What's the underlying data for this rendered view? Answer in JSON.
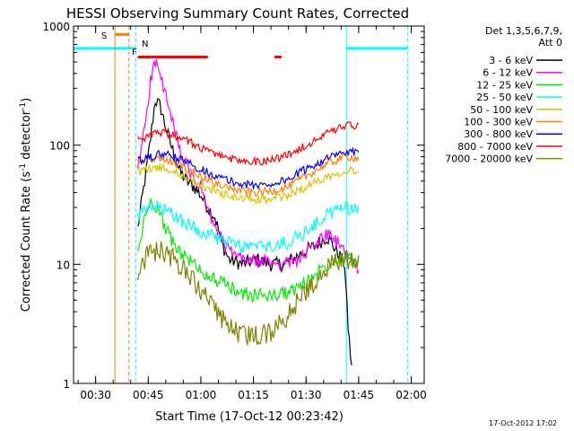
{
  "chart_data": {
    "type": "line",
    "title": "HESSI Observing Summary Count Rates, Corrected",
    "xlabel": "Start Time (17-Oct-12 00:23:42)",
    "ylabel_main": "Corrected Count Rate (s",
    "ylabel_exp1": "-1",
    "ylabel_mid": " detector",
    "ylabel_exp2": "-1",
    "ylabel_end": ")",
    "ylabel": "Corrected Count Rate (s-1 detector-1)",
    "y_scale": "log",
    "ylim": [
      1,
      1000
    ],
    "xlim": [
      "00:23:42",
      "02:03:42"
    ],
    "x_ticks": [
      "00:30",
      "00:45",
      "01:00",
      "01:15",
      "01:30",
      "01:45",
      "02:00"
    ],
    "y_ticks": [
      "1",
      "10",
      "100",
      "1000"
    ],
    "legend_title_1": "Det 1,3,5,6,7,9,",
    "legend_title_2": "Att 0",
    "legend_position": "right",
    "footer_date": "17-Oct-2012 17:02",
    "series": [
      {
        "name": "3 - 6 keV",
        "color": "#000000",
        "points": [
          [
            "00:42:00",
            20
          ],
          [
            "00:45:00",
            80
          ],
          [
            "00:47:00",
            240
          ],
          [
            "00:48:30",
            210
          ],
          [
            "00:50:00",
            140
          ],
          [
            "00:52:00",
            90
          ],
          [
            "00:54:00",
            60
          ],
          [
            "00:56:00",
            50
          ],
          [
            "00:58:00",
            45
          ],
          [
            "01:00:00",
            38
          ],
          [
            "01:02:00",
            30
          ],
          [
            "01:04:00",
            25
          ],
          [
            "01:06:00",
            15
          ],
          [
            "01:08:00",
            11
          ],
          [
            "01:12:00",
            10
          ],
          [
            "01:16:00",
            11
          ],
          [
            "01:20:00",
            10
          ],
          [
            "01:24:00",
            10
          ],
          [
            "01:28:00",
            12
          ],
          [
            "01:32:00",
            14
          ],
          [
            "01:36:00",
            17
          ],
          [
            "01:38:00",
            14
          ],
          [
            "01:41:00",
            10
          ],
          [
            "01:42:00",
            3
          ],
          [
            "01:43:00",
            1.3
          ]
        ]
      },
      {
        "name": "6 - 12 keV",
        "color": "#ff00ff",
        "points": [
          [
            "00:42:00",
            60
          ],
          [
            "00:44:00",
            150
          ],
          [
            "00:46:00",
            400
          ],
          [
            "00:47:00",
            500
          ],
          [
            "00:48:00",
            420
          ],
          [
            "00:50:00",
            260
          ],
          [
            "00:52:00",
            150
          ],
          [
            "00:54:00",
            90
          ],
          [
            "00:56:00",
            65
          ],
          [
            "00:58:00",
            50
          ],
          [
            "01:00:00",
            45
          ],
          [
            "01:02:00",
            28
          ],
          [
            "01:04:00",
            20
          ],
          [
            "01:06:00",
            16
          ],
          [
            "01:08:00",
            13
          ],
          [
            "01:12:00",
            11
          ],
          [
            "01:16:00",
            10.5
          ],
          [
            "01:20:00",
            10.5
          ],
          [
            "01:24:00",
            10
          ],
          [
            "01:28:00",
            11
          ],
          [
            "01:32:00",
            14
          ],
          [
            "01:36:00",
            18
          ],
          [
            "01:40:00",
            14
          ],
          [
            "01:42:00",
            12
          ],
          [
            "01:44:00",
            10
          ],
          [
            "01:45:00",
            9
          ]
        ]
      },
      {
        "name": "12 - 25 keV",
        "color": "#00ee00",
        "points": [
          [
            "00:42:00",
            12
          ],
          [
            "00:44:00",
            25
          ],
          [
            "00:46:00",
            35
          ],
          [
            "00:48:00",
            28
          ],
          [
            "00:50:00",
            20
          ],
          [
            "00:52:00",
            15
          ],
          [
            "00:55:00",
            12
          ],
          [
            "00:58:00",
            10
          ],
          [
            "01:02:00",
            8
          ],
          [
            "01:06:00",
            7
          ],
          [
            "01:10:00",
            6
          ],
          [
            "01:14:00",
            5.5
          ],
          [
            "01:18:00",
            5.5
          ],
          [
            "01:22:00",
            5.5
          ],
          [
            "01:26:00",
            6
          ],
          [
            "01:30:00",
            7
          ],
          [
            "01:34:00",
            9
          ],
          [
            "01:38:00",
            11
          ],
          [
            "01:41:00",
            12
          ],
          [
            "01:43:00",
            11
          ],
          [
            "01:45:00",
            10.5
          ]
        ]
      },
      {
        "name": "25 - 50 keV",
        "color": "#00ffff",
        "points": [
          [
            "00:42:00",
            25
          ],
          [
            "00:44:00",
            28
          ],
          [
            "00:46:00",
            30
          ],
          [
            "00:48:00",
            30
          ],
          [
            "00:50:00",
            28
          ],
          [
            "00:53:00",
            25
          ],
          [
            "00:56:00",
            22
          ],
          [
            "01:00:00",
            19
          ],
          [
            "01:04:00",
            17
          ],
          [
            "01:08:00",
            15
          ],
          [
            "01:12:00",
            14
          ],
          [
            "01:16:00",
            14
          ],
          [
            "01:20:00",
            14
          ],
          [
            "01:24:00",
            15
          ],
          [
            "01:28:00",
            17
          ],
          [
            "01:32:00",
            21
          ],
          [
            "01:36:00",
            26
          ],
          [
            "01:40:00",
            30
          ],
          [
            "01:43:00",
            30
          ],
          [
            "01:45:00",
            28
          ]
        ]
      },
      {
        "name": "50 - 100 keV",
        "color": "#e0c000",
        "points": [
          [
            "00:42:00",
            60
          ],
          [
            "00:45:00",
            63
          ],
          [
            "00:48:00",
            65
          ],
          [
            "00:51:00",
            62
          ],
          [
            "00:55:00",
            55
          ],
          [
            "01:00:00",
            46
          ],
          [
            "01:05:00",
            40
          ],
          [
            "01:10:00",
            36
          ],
          [
            "01:15:00",
            35
          ],
          [
            "01:20:00",
            35
          ],
          [
            "01:25:00",
            38
          ],
          [
            "01:30:00",
            45
          ],
          [
            "01:35:00",
            53
          ],
          [
            "01:40:00",
            60
          ],
          [
            "01:43:00",
            62
          ],
          [
            "01:45:00",
            60
          ]
        ]
      },
      {
        "name": "100 - 300 keV",
        "color": "#ff7f00",
        "points": [
          [
            "00:42:00",
            72
          ],
          [
            "00:45:00",
            75
          ],
          [
            "00:48:00",
            78
          ],
          [
            "00:51:00",
            74
          ],
          [
            "00:55:00",
            66
          ],
          [
            "01:00:00",
            55
          ],
          [
            "01:05:00",
            47
          ],
          [
            "01:10:00",
            42
          ],
          [
            "01:15:00",
            40
          ],
          [
            "01:20:00",
            41
          ],
          [
            "01:25:00",
            45
          ],
          [
            "01:30:00",
            55
          ],
          [
            "01:35:00",
            67
          ],
          [
            "01:40:00",
            78
          ],
          [
            "01:43:00",
            80
          ],
          [
            "01:45:00",
            76
          ]
        ]
      },
      {
        "name": "300 - 800 keV",
        "color": "#0000ff",
        "points": [
          [
            "00:42:00",
            73
          ],
          [
            "00:45:00",
            78
          ],
          [
            "00:48:00",
            84
          ],
          [
            "00:51:00",
            82
          ],
          [
            "00:55:00",
            74
          ],
          [
            "01:00:00",
            63
          ],
          [
            "01:05:00",
            54
          ],
          [
            "01:10:00",
            48
          ],
          [
            "01:15:00",
            46
          ],
          [
            "01:20:00",
            47
          ],
          [
            "01:25:00",
            52
          ],
          [
            "01:30:00",
            63
          ],
          [
            "01:35:00",
            75
          ],
          [
            "01:40:00",
            85
          ],
          [
            "01:43:00",
            87
          ],
          [
            "01:45:00",
            84
          ]
        ]
      },
      {
        "name": "800 - 7000 keV",
        "color": "#ff0000",
        "points": [
          [
            "00:42:00",
            110
          ],
          [
            "00:45:00",
            120
          ],
          [
            "00:48:00",
            128
          ],
          [
            "00:51:00",
            125
          ],
          [
            "00:55:00",
            112
          ],
          [
            "01:00:00",
            96
          ],
          [
            "01:05:00",
            82
          ],
          [
            "01:10:00",
            75
          ],
          [
            "01:15:00",
            73
          ],
          [
            "01:20:00",
            75
          ],
          [
            "01:25:00",
            83
          ],
          [
            "01:30:00",
            100
          ],
          [
            "01:35:00",
            120
          ],
          [
            "01:40:00",
            140
          ],
          [
            "01:43:00",
            148
          ],
          [
            "01:45:00",
            142
          ]
        ]
      },
      {
        "name": "7000 - 20000 keV",
        "color": "#808000",
        "points": [
          [
            "00:42:00",
            9
          ],
          [
            "00:45:00",
            12
          ],
          [
            "00:48:00",
            13
          ],
          [
            "00:51:00",
            12
          ],
          [
            "00:55:00",
            9
          ],
          [
            "01:00:00",
            6
          ],
          [
            "01:04:00",
            4
          ],
          [
            "01:08:00",
            3
          ],
          [
            "01:12:00",
            2.5
          ],
          [
            "01:16:00",
            2.5
          ],
          [
            "01:20:00",
            2.7
          ],
          [
            "01:24:00",
            3.5
          ],
          [
            "01:28:00",
            5
          ],
          [
            "01:32:00",
            7
          ],
          [
            "01:36:00",
            9.5
          ],
          [
            "01:40:00",
            11
          ],
          [
            "01:43:00",
            11
          ],
          [
            "01:45:00",
            10
          ]
        ]
      }
    ],
    "annotations": [
      {
        "label": "S",
        "color": "#ff7f00"
      },
      {
        "label": "N",
        "color": "#00ffff"
      },
      {
        "label": "F",
        "color": "#ff0000"
      }
    ],
    "vertical_markers": [
      {
        "time": "00:35:30",
        "color": "#ff7f00",
        "style": "solid"
      },
      {
        "time": "00:39:30",
        "color": "#ff7f00",
        "style": "dashed"
      },
      {
        "time": "00:41:30",
        "color": "#00ffff",
        "style": "dashed"
      },
      {
        "time": "01:41:30",
        "color": "#00ffff",
        "style": "solid"
      },
      {
        "time": "01:59:00",
        "color": "#00ffff",
        "style": "dashed"
      }
    ],
    "bars": [
      {
        "color": "#00ffff",
        "y": 650,
        "segments": [
          [
            "00:23:42",
            "00:41:30"
          ],
          [
            "01:41:30",
            "01:59:00"
          ]
        ]
      },
      {
        "color": "#ff7f00",
        "y": 850,
        "segments": [
          [
            "00:35:30",
            "00:39:30"
          ]
        ]
      },
      {
        "color": "#ff0000",
        "y": 550,
        "segments": [
          [
            "00:42:00",
            "01:02:00"
          ],
          [
            "01:21:00",
            "01:23:00"
          ]
        ]
      }
    ]
  }
}
